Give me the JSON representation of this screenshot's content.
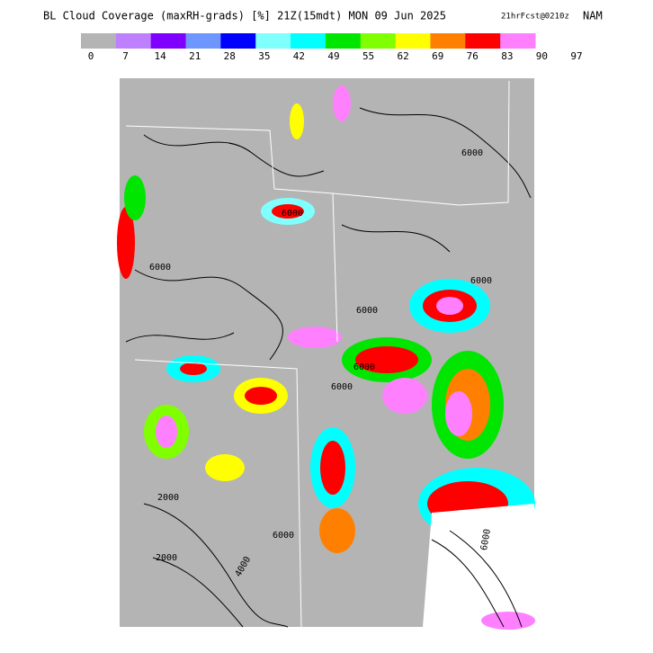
{
  "header": {
    "title": "BL Cloud Coverage (maxRH-grads) [%] 21Z(15mdt) MON 09 Jun 2025",
    "forecast": "21hrFcst@0210z",
    "model": "NAM"
  },
  "colorbar": {
    "colors": [
      "#b4b4b4",
      "#bf80ff",
      "#8000ff",
      "#6e96ff",
      "#0000ff",
      "#80ffff",
      "#00ffff",
      "#00e600",
      "#80ff00",
      "#ffff00",
      "#ff8000",
      "#ff0000",
      "#ff80ff"
    ],
    "labels": [
      "0",
      "7",
      "14",
      "21",
      "28",
      "35",
      "42",
      "49",
      "55",
      "62",
      "69",
      "76",
      "83",
      "90",
      "97"
    ]
  },
  "contour_labels": [
    "6000",
    "6000",
    "6000",
    "6000",
    "6000",
    "6000",
    "6000",
    "2000",
    "2000",
    "4000",
    "6000",
    "6000"
  ]
}
